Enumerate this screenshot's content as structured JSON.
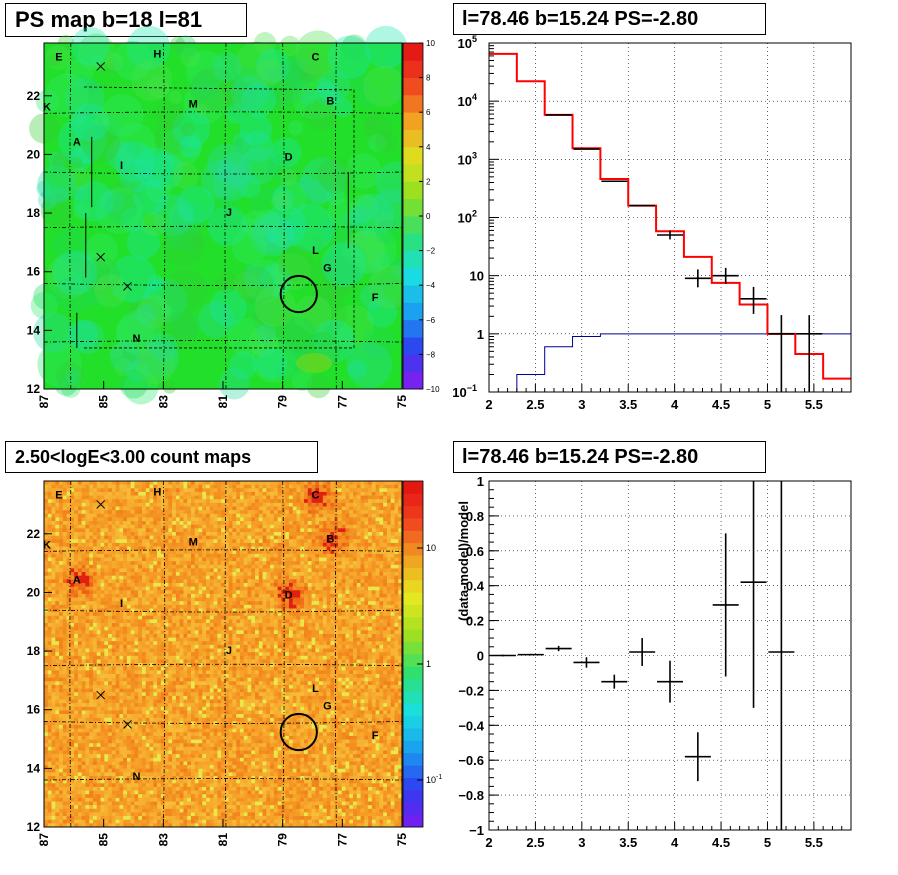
{
  "titles": {
    "ps_map": "PS map b=18 l=81",
    "spectrum": "l=78.46 b=15.24 PS=-2.80",
    "count_map": "2.50<logE<3.00 count maps",
    "residual": "l=78.46 b=15.24 PS=-2.80"
  },
  "colors": {
    "model_line": "#ff0000",
    "background_line": "#000099",
    "data": "#000000",
    "ps_map_base": "#22e02a",
    "count_map_base": "#f7b530"
  },
  "chart_data": [
    {
      "id": "ps_map",
      "type": "heatmap",
      "title": "PS map b=18 l=81",
      "x_ticks": [
        "87",
        "85",
        "83",
        "81",
        "79",
        "77",
        "75"
      ],
      "y_ticks": [
        "12",
        "14",
        "16",
        "18",
        "20",
        "22"
      ],
      "xlim": [
        87,
        75
      ],
      "ylim": [
        12,
        23.8
      ],
      "colorbar": {
        "min": -10,
        "max": 10,
        "ticks": [
          "10",
          "8",
          "6",
          "4",
          "2",
          "0",
          "−2",
          "−4",
          "−6",
          "−8",
          "−10"
        ]
      },
      "sources": [
        {
          "label": "E",
          "l": 86.5,
          "b": 23.3
        },
        {
          "label": "H",
          "l": 83.2,
          "b": 23.4
        },
        {
          "label": "C",
          "l": 77.9,
          "b": 23.3
        },
        {
          "label": "K",
          "l": 86.9,
          "b": 21.6
        },
        {
          "label": "M",
          "l": 82.0,
          "b": 21.7
        },
        {
          "label": "B",
          "l": 77.4,
          "b": 21.8
        },
        {
          "label": "A",
          "l": 85.9,
          "b": 20.4
        },
        {
          "label": "I",
          "l": 84.4,
          "b": 19.6
        },
        {
          "label": "D",
          "l": 78.8,
          "b": 19.9
        },
        {
          "label": "J",
          "l": 80.8,
          "b": 18.0
        },
        {
          "label": "L",
          "l": 77.9,
          "b": 16.7
        },
        {
          "label": "G",
          "l": 77.5,
          "b": 16.1
        },
        {
          "label": "F",
          "l": 75.9,
          "b": 15.1
        },
        {
          "label": "N",
          "l": 83.9,
          "b": 13.7
        }
      ],
      "crosses": [
        {
          "l": 85.1,
          "b": 23.0
        },
        {
          "l": 85.1,
          "b": 16.5
        },
        {
          "l": 84.2,
          "b": 15.5
        }
      ],
      "circle": {
        "l": 78.46,
        "b": 15.24,
        "r": 0.45
      }
    },
    {
      "id": "spectrum",
      "type": "line",
      "title": "l=78.46 b=15.24 PS=-2.80",
      "xlim": [
        2,
        5.9
      ],
      "ylim": [
        0.1,
        100000
      ],
      "log_y": true,
      "grid": true,
      "x_ticks": [
        "2",
        "2.5",
        "3",
        "3.5",
        "4",
        "4.5",
        "5",
        "5.5"
      ],
      "y_ticks": [
        {
          "v": 0.1,
          "base": "10",
          "exp": "−1"
        },
        {
          "v": 1,
          "base": "1",
          "exp": ""
        },
        {
          "v": 10,
          "base": "10",
          "exp": ""
        },
        {
          "v": 100,
          "base": "10",
          "exp": "2"
        },
        {
          "v": 1000,
          "base": "10",
          "exp": "3"
        },
        {
          "v": 10000,
          "base": "10",
          "exp": "4"
        },
        {
          "v": 100000,
          "base": "10",
          "exp": "5"
        }
      ],
      "bin_edges": [
        2.0,
        2.3,
        2.6,
        2.9,
        3.2,
        3.5,
        3.8,
        4.1,
        4.4,
        4.7,
        5.0,
        5.3,
        5.6,
        5.9
      ],
      "series": [
        {
          "role": "model",
          "values": [
            65000,
            22000,
            5800,
            1550,
            460,
            160,
            58,
            21,
            7.5,
            3.2,
            1.0,
            0.45,
            0.17
          ]
        },
        {
          "role": "background",
          "values": [
            0.1,
            0.2,
            0.6,
            0.9,
            1.0,
            1.0,
            1.0,
            1.0,
            1.0,
            1.0,
            1.0,
            1.0,
            1.0
          ]
        },
        {
          "role": "data",
          "points": [
            {
              "x": 2.75,
              "y": 5800
            },
            {
              "x": 3.05,
              "y": 1500
            },
            {
              "x": 3.35,
              "y": 420
            },
            {
              "x": 3.65,
              "y": 160
            },
            {
              "x": 3.95,
              "y": 50,
              "ylo": 42,
              "yhi": 60
            },
            {
              "x": 4.25,
              "y": 9,
              "ylo": 6.3,
              "yhi": 12.8
            },
            {
              "x": 4.55,
              "y": 10,
              "ylo": 7.2,
              "yhi": 13.6
            },
            {
              "x": 4.85,
              "y": 4,
              "ylo": 2.2,
              "yhi": 6.4
            },
            {
              "x": 5.15,
              "y": 1,
              "ylo": 0.1,
              "yhi": 2.1
            },
            {
              "x": 5.45,
              "y": 1,
              "ylo": 0.1,
              "yhi": 2.1
            }
          ]
        }
      ]
    },
    {
      "id": "count_map",
      "type": "heatmap",
      "title": "2.50<logE<3.00 count maps",
      "x_ticks": [
        "87",
        "85",
        "83",
        "81",
        "79",
        "77",
        "75"
      ],
      "y_ticks": [
        "12",
        "14",
        "16",
        "18",
        "20",
        "22"
      ],
      "xlim": [
        87,
        75
      ],
      "ylim": [
        12,
        23.8
      ],
      "colorbar": {
        "log": true,
        "labels": [
          "10",
          "1",
          "10^-1"
        ]
      },
      "hotspots": [
        {
          "label": "A",
          "l": 85.9,
          "b": 20.5
        },
        {
          "label": "C",
          "l": 77.9,
          "b": 23.3
        },
        {
          "label": "B",
          "l": 77.4,
          "b": 21.9
        },
        {
          "label": "D",
          "l": 78.8,
          "b": 20.0
        }
      ]
    },
    {
      "id": "residual",
      "type": "scatter",
      "title": "l=78.46 b=15.24 PS=-2.80",
      "ylabel": "(data-model)/model",
      "xlim": [
        2,
        5.9
      ],
      "ylim": [
        -1,
        1
      ],
      "grid": true,
      "x_ticks": [
        "2",
        "2.5",
        "3",
        "3.5",
        "4",
        "4.5",
        "5",
        "5.5"
      ],
      "y_ticks": [
        "1",
        "0.8",
        "0.6",
        "0.4",
        "0.2",
        "0",
        "−0.2",
        "−0.4",
        "−0.6",
        "−0.8",
        "−1"
      ],
      "points": [
        {
          "x": 2.15,
          "y": 0.0,
          "err": 0.005
        },
        {
          "x": 2.45,
          "y": 0.005,
          "err": 0.005
        },
        {
          "x": 2.75,
          "y": 0.04,
          "err": 0.015
        },
        {
          "x": 3.05,
          "y": -0.04,
          "err": 0.03
        },
        {
          "x": 3.35,
          "y": -0.15,
          "err": 0.04
        },
        {
          "x": 3.65,
          "y": 0.02,
          "err": 0.08
        },
        {
          "x": 3.95,
          "y": -0.15,
          "err": 0.12
        },
        {
          "x": 4.25,
          "y": -0.58,
          "err": 0.14
        },
        {
          "x": 4.55,
          "y": 0.29,
          "err": 0.41
        },
        {
          "x": 4.85,
          "y": 0.42,
          "err": 0.72
        },
        {
          "x": 5.15,
          "y": 0.02,
          "err": 1.1
        }
      ]
    }
  ]
}
